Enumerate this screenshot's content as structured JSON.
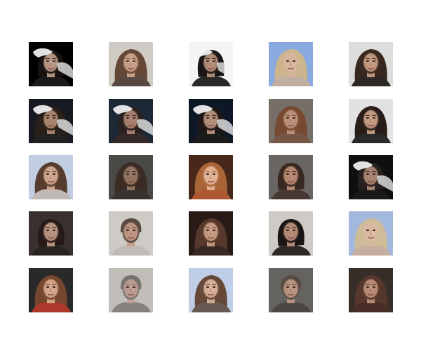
{
  "figure": {
    "rows": 5,
    "columns": 5,
    "tiles": [
      {
        "subject": "generated-face",
        "background": "#000000",
        "hair": "#1a1412",
        "skin": "#c9a790",
        "shirt": "#1c1c1c",
        "hair_style": "dark",
        "artifact": true
      },
      {
        "subject": "generated-face",
        "background": "#d9d3cc",
        "hair": "#6a4a38",
        "skin": "#d9ae93",
        "shirt": "#5b4d44",
        "hair_style": "long",
        "artifact": false
      },
      {
        "subject": "generated-face",
        "background": "#ffffff",
        "hair": "#1b1716",
        "skin": "#c49b83",
        "shirt": "#2a2a2a",
        "hair_style": "dark",
        "artifact": true
      },
      {
        "subject": "generated-face",
        "background": "#8fb1e8",
        "hair": "#d5bc93",
        "skin": "#e2bea7",
        "shirt": "#c9b6aa",
        "hair_style": "blonde",
        "artifact": false
      },
      {
        "subject": "generated-face",
        "background": "#e7e6e4",
        "hair": "#3b2a22",
        "skin": "#d5a88c",
        "shirt": "#2e2a28",
        "hair_style": "long",
        "artifact": false
      },
      {
        "subject": "generated-face",
        "background": "#1a1c24",
        "hair": "#2b211b",
        "skin": "#b89378",
        "shirt": "#232323",
        "hair_style": "long",
        "artifact": true
      },
      {
        "subject": "generated-face",
        "background": "#1f2a3a",
        "hair": "#2c2320",
        "skin": "#b88c7a",
        "shirt": "#3a2a2a",
        "hair_style": "dark",
        "artifact": true
      },
      {
        "subject": "generated-face",
        "background": "#0f1828",
        "hair": "#1f1a18",
        "skin": "#c49d86",
        "shirt": "#1d1d1d",
        "hair_style": "dark",
        "artifact": true
      },
      {
        "subject": "generated-face",
        "background": "#7a746c",
        "hair": "#7d4c33",
        "skin": "#c79c82",
        "shirt": "#7b5b48",
        "hair_style": "long",
        "artifact": false
      },
      {
        "subject": "generated-face",
        "background": "#ececec",
        "hair": "#2a1f1b",
        "skin": "#d6aa8f",
        "shirt": "#2b2b2b",
        "hair_style": "long",
        "artifact": false
      },
      {
        "subject": "generated-face",
        "background": "#c9d6ea",
        "hair": "#5a3f30",
        "skin": "#dfb59a",
        "shirt": "#c7c1bc",
        "hair_style": "long",
        "artifact": false
      },
      {
        "subject": "generated-face",
        "background": "#4c4c48",
        "hair": "#3d2e27",
        "skin": "#9f7f68",
        "shirt": "#3a3633",
        "hair_style": "long",
        "artifact": false
      },
      {
        "subject": "generated-face",
        "background": "#4a2a1c",
        "hair": "#b06a3b",
        "skin": "#efc0a1",
        "shirt": "#b45b35",
        "hair_style": "long",
        "artifact": false
      },
      {
        "subject": "generated-face",
        "background": "#6d6a66",
        "hair": "#3c2a22",
        "skin": "#c7957b",
        "shirt": "#4a3a35",
        "hair_style": "dark",
        "artifact": false
      },
      {
        "subject": "generated-face",
        "background": "#101010",
        "hair": "#2a2220",
        "skin": "#b8917c",
        "shirt": "#1c1c1c",
        "hair_style": "dark",
        "artifact": true
      },
      {
        "subject": "generated-face",
        "background": "#3c3431",
        "hair": "#2a1d18",
        "skin": "#c9a28d",
        "shirt": "#2a2624",
        "hair_style": "dark",
        "artifact": false
      },
      {
        "subject": "generated-face",
        "background": "#d7d4cf",
        "hair": "#5c4d44",
        "skin": "#caa18c",
        "shirt": "#c9c3bf",
        "hair_style": "short",
        "artifact": false
      },
      {
        "subject": "generated-face",
        "background": "#2a1d18",
        "hair": "#5a3c2e",
        "skin": "#d5a88d",
        "shirt": "#3b2c25",
        "hair_style": "long",
        "artifact": false
      },
      {
        "subject": "generated-face",
        "background": "#d7d3cf",
        "hair": "#1d1716",
        "skin": "#c69a83",
        "shirt": "#2f2a28",
        "hair_style": "dark",
        "artifact": false
      },
      {
        "subject": "generated-face",
        "background": "#a9c0e7",
        "hair": "#d7c39f",
        "skin": "#e4c1aa",
        "shirt": "#cbb6a6",
        "hair_style": "blonde",
        "artifact": false
      },
      {
        "subject": "generated-face",
        "background": "#2b2b2b",
        "hair": "#7a4a30",
        "skin": "#e3b396",
        "shirt": "#b53a2c",
        "hair_style": "long",
        "artifact": false
      },
      {
        "subject": "generated-face",
        "background": "#c9c6c1",
        "hair": "#7c7873",
        "skin": "#c9a59a",
        "shirt": "#8b8884",
        "hair_style": "short",
        "artifact": false
      },
      {
        "subject": "generated-face",
        "background": "#c7d7f0",
        "hair": "#6b4b3b",
        "skin": "#e5bea6",
        "shirt": "#6b5d55",
        "hair_style": "long",
        "artifact": false
      },
      {
        "subject": "generated-face",
        "background": "#6a6864",
        "hair": "#5b4f46",
        "skin": "#c8a08b",
        "shirt": "#4f4a46",
        "hair_style": "short",
        "artifact": false
      },
      {
        "subject": "generated-face",
        "background": "#3a302b",
        "hair": "#5a3a2e",
        "skin": "#c8987f",
        "shirt": "#4b2f28",
        "hair_style": "long",
        "artifact": false
      }
    ]
  }
}
